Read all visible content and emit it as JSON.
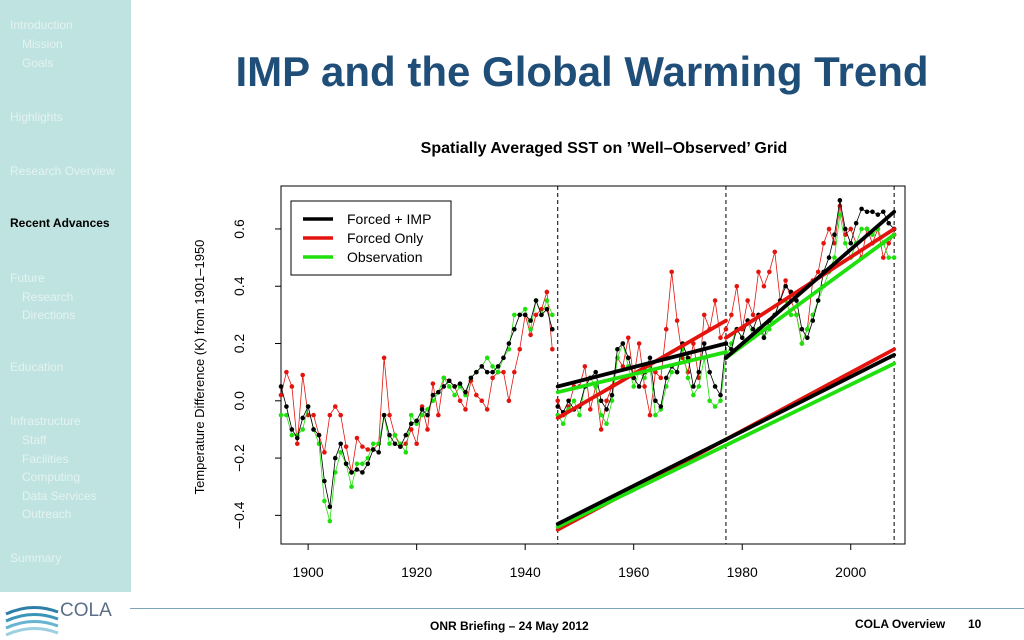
{
  "sidebar": {
    "items": [
      {
        "label": "Introduction",
        "level": 0
      },
      {
        "label": "Mission",
        "level": 1
      },
      {
        "label": "Goals",
        "level": 1
      },
      {
        "label": "Highlights",
        "level": 0
      },
      {
        "label": "Research Overview",
        "level": 0
      },
      {
        "label": "Recent Advances",
        "level": 0,
        "active": true
      },
      {
        "label": "Future",
        "level": 0
      },
      {
        "label": "Research",
        "level": 1
      },
      {
        "label": "Directions",
        "level": 1
      },
      {
        "label": "Education",
        "level": 0
      },
      {
        "label": "Infrastructure",
        "level": 0
      },
      {
        "label": "Staff",
        "level": 1
      },
      {
        "label": "Facilities",
        "level": 1
      },
      {
        "label": "Computing",
        "level": 1
      },
      {
        "label": "Data Services",
        "level": 1
      },
      {
        "label": "Outreach",
        "level": 1
      },
      {
        "label": "Summary",
        "level": 0
      }
    ]
  },
  "slide": {
    "title": "IMP and the Global Warming Trend"
  },
  "footer": {
    "center": "ONR Briefing – 24 May 2012",
    "right": "COLA Overview",
    "page": "10",
    "logo_text": "COLA"
  },
  "colors": {
    "title": "#1f4e79",
    "sidebar_bg": "#bfe3e0",
    "forced_imp": "#000000",
    "forced_only": "#e3140e",
    "observation": "#1fe00c"
  },
  "chart_data": {
    "type": "line",
    "title": "Spatially Averaged SST on ’Well–Observed’ Grid",
    "xlabel": "",
    "ylabel": "Temperature Difference (K) from 1901–1950",
    "xlim": [
      1895,
      2010
    ],
    "ylim": [
      -0.5,
      0.75
    ],
    "xticks": [
      1900,
      1920,
      1940,
      1960,
      1980,
      2000
    ],
    "yticks": [
      -0.4,
      -0.2,
      0.0,
      0.2,
      0.4,
      0.6
    ],
    "ytick_labels": [
      "−0.4",
      "−0.2",
      "0.0",
      "0.2",
      "0.4",
      "0.6"
    ],
    "legend_position": "top-left",
    "vlines": [
      1946,
      1977,
      2008
    ],
    "series": [
      {
        "name": "Forced + IMP",
        "color": "#000000",
        "x": [
          1895,
          1896,
          1897,
          1898,
          1899,
          1900,
          1901,
          1902,
          1903,
          1904,
          1905,
          1906,
          1907,
          1908,
          1909,
          1910,
          1911,
          1912,
          1913,
          1914,
          1915,
          1916,
          1917,
          1918,
          1919,
          1920,
          1921,
          1922,
          1923,
          1924,
          1925,
          1926,
          1927,
          1928,
          1929,
          1930,
          1931,
          1932,
          1933,
          1934,
          1935,
          1936,
          1937,
          1938,
          1939,
          1940,
          1941,
          1942,
          1943,
          1944,
          1945,
          1946,
          1947,
          1948,
          1949,
          1950,
          1951,
          1952,
          1953,
          1954,
          1955,
          1956,
          1957,
          1958,
          1959,
          1960,
          1961,
          1962,
          1963,
          1964,
          1965,
          1966,
          1967,
          1968,
          1969,
          1970,
          1971,
          1972,
          1973,
          1974,
          1975,
          1976,
          1977,
          1978,
          1979,
          1980,
          1981,
          1982,
          1983,
          1984,
          1985,
          1986,
          1987,
          1988,
          1989,
          1990,
          1991,
          1992,
          1993,
          1994,
          1995,
          1996,
          1997,
          1998,
          1999,
          2000,
          2001,
          2002,
          2003,
          2004,
          2005,
          2006,
          2007,
          2008
        ],
        "y": [
          0.05,
          -0.02,
          -0.1,
          -0.13,
          -0.06,
          -0.02,
          -0.1,
          -0.12,
          -0.28,
          -0.37,
          -0.2,
          -0.15,
          -0.22,
          -0.25,
          -0.24,
          -0.25,
          -0.22,
          -0.17,
          -0.18,
          -0.05,
          -0.12,
          -0.15,
          -0.16,
          -0.12,
          -0.08,
          -0.07,
          -0.03,
          -0.05,
          0.02,
          0.03,
          0.05,
          0.07,
          0.05,
          0.06,
          0.03,
          0.08,
          0.1,
          0.12,
          0.1,
          0.1,
          0.12,
          0.15,
          0.2,
          0.25,
          0.3,
          0.3,
          0.28,
          0.35,
          0.3,
          0.32,
          0.25,
          -0.02,
          -0.04,
          0.0,
          -0.03,
          -0.02,
          0.05,
          0.08,
          0.1,
          0.0,
          -0.03,
          0.02,
          0.18,
          0.2,
          0.15,
          0.08,
          0.05,
          0.1,
          0.15,
          0.0,
          -0.02,
          0.08,
          0.12,
          0.1,
          0.2,
          0.15,
          0.05,
          0.1,
          0.2,
          0.1,
          0.05,
          0.02,
          0.2,
          0.18,
          0.25,
          0.22,
          0.28,
          0.25,
          0.3,
          0.22,
          0.28,
          0.3,
          0.35,
          0.4,
          0.38,
          0.35,
          0.25,
          0.22,
          0.28,
          0.35,
          0.45,
          0.5,
          0.58,
          0.7,
          0.6,
          0.55,
          0.62,
          0.67,
          0.66,
          0.66,
          0.65,
          0.66,
          0.62,
          0.6
        ]
      },
      {
        "name": "Forced Only",
        "color": "#e3140e",
        "x": [
          1895,
          1896,
          1897,
          1898,
          1899,
          1900,
          1901,
          1902,
          1903,
          1904,
          1905,
          1906,
          1907,
          1908,
          1909,
          1910,
          1911,
          1912,
          1913,
          1914,
          1915,
          1916,
          1917,
          1918,
          1919,
          1920,
          1921,
          1922,
          1923,
          1924,
          1925,
          1926,
          1927,
          1928,
          1929,
          1930,
          1931,
          1932,
          1933,
          1934,
          1935,
          1936,
          1937,
          1938,
          1939,
          1940,
          1941,
          1942,
          1943,
          1944,
          1945,
          1946,
          1947,
          1948,
          1949,
          1950,
          1951,
          1952,
          1953,
          1954,
          1955,
          1956,
          1957,
          1958,
          1959,
          1960,
          1961,
          1962,
          1963,
          1964,
          1965,
          1966,
          1967,
          1968,
          1969,
          1970,
          1971,
          1972,
          1973,
          1974,
          1975,
          1976,
          1977,
          1978,
          1979,
          1980,
          1981,
          1982,
          1983,
          1984,
          1985,
          1986,
          1987,
          1988,
          1989,
          1990,
          1991,
          1992,
          1993,
          1994,
          1995,
          1996,
          1997,
          1998,
          1999,
          2000,
          2001,
          2002,
          2003,
          2004,
          2005,
          2006,
          2007,
          2008
        ],
        "y": [
          0.02,
          0.1,
          0.05,
          -0.15,
          0.09,
          -0.05,
          -0.05,
          -0.12,
          -0.18,
          -0.05,
          -0.02,
          -0.05,
          -0.16,
          -0.25,
          -0.13,
          -0.16,
          -0.17,
          -0.17,
          -0.15,
          0.15,
          -0.05,
          -0.12,
          -0.16,
          -0.15,
          -0.1,
          -0.15,
          -0.02,
          -0.1,
          0.06,
          -0.05,
          0.08,
          0.07,
          0.05,
          0.0,
          -0.03,
          0.07,
          0.02,
          0.0,
          -0.03,
          0.08,
          0.1,
          0.1,
          0.0,
          0.1,
          0.18,
          0.3,
          0.23,
          0.3,
          0.32,
          0.38,
          0.18,
          0.0,
          -0.05,
          -0.02,
          0.05,
          0.05,
          0.12,
          -0.03,
          0.05,
          -0.1,
          0.0,
          0.05,
          0.15,
          0.12,
          0.22,
          0.08,
          0.2,
          0.05,
          -0.05,
          0.1,
          0.08,
          0.25,
          0.45,
          0.28,
          0.15,
          0.1,
          0.2,
          0.08,
          0.3,
          0.25,
          0.35,
          0.22,
          0.25,
          0.3,
          0.4,
          0.25,
          0.35,
          0.3,
          0.45,
          0.4,
          0.45,
          0.52,
          0.35,
          0.42,
          0.35,
          0.3,
          0.2,
          0.25,
          0.42,
          0.45,
          0.55,
          0.6,
          0.55,
          0.68,
          0.58,
          0.6,
          0.55,
          0.5,
          0.6,
          0.55,
          0.6,
          0.5,
          0.55,
          0.58
        ]
      },
      {
        "name": "Observation",
        "color": "#1fe00c",
        "x": [
          1895,
          1896,
          1897,
          1898,
          1899,
          1900,
          1901,
          1902,
          1903,
          1904,
          1905,
          1906,
          1907,
          1908,
          1909,
          1910,
          1911,
          1912,
          1913,
          1914,
          1915,
          1916,
          1917,
          1918,
          1919,
          1920,
          1921,
          1922,
          1923,
          1924,
          1925,
          1926,
          1927,
          1928,
          1929,
          1930,
          1931,
          1932,
          1933,
          1934,
          1935,
          1936,
          1937,
          1938,
          1939,
          1940,
          1941,
          1942,
          1943,
          1944,
          1945,
          1946,
          1947,
          1948,
          1949,
          1950,
          1951,
          1952,
          1953,
          1954,
          1955,
          1956,
          1957,
          1958,
          1959,
          1960,
          1961,
          1962,
          1963,
          1964,
          1965,
          1966,
          1967,
          1968,
          1969,
          1970,
          1971,
          1972,
          1973,
          1974,
          1975,
          1976,
          1977,
          1978,
          1979,
          1980,
          1981,
          1982,
          1983,
          1984,
          1985,
          1986,
          1987,
          1988,
          1989,
          1990,
          1991,
          1992,
          1993,
          1994,
          1995,
          1996,
          1997,
          1998,
          1999,
          2000,
          2001,
          2002,
          2003,
          2004,
          2005,
          2006,
          2007,
          2008
        ],
        "y": [
          -0.05,
          -0.05,
          -0.12,
          -0.12,
          -0.1,
          -0.02,
          -0.1,
          -0.15,
          -0.35,
          -0.42,
          -0.25,
          -0.18,
          -0.22,
          -0.3,
          -0.22,
          -0.22,
          -0.2,
          -0.15,
          -0.15,
          -0.05,
          -0.15,
          -0.12,
          -0.15,
          -0.18,
          -0.05,
          -0.08,
          -0.05,
          -0.03,
          0.0,
          0.03,
          0.08,
          0.05,
          0.02,
          0.05,
          0.02,
          0.08,
          0.1,
          0.12,
          0.15,
          0.12,
          0.1,
          0.15,
          0.18,
          0.3,
          0.3,
          0.32,
          0.25,
          0.35,
          0.3,
          0.35,
          0.3,
          -0.05,
          -0.08,
          -0.03,
          0.0,
          -0.05,
          0.05,
          0.08,
          0.05,
          -0.05,
          -0.08,
          0.0,
          0.15,
          0.2,
          0.12,
          0.05,
          0.1,
          0.08,
          0.12,
          -0.05,
          -0.03,
          0.05,
          0.1,
          0.1,
          0.18,
          0.08,
          0.02,
          0.05,
          0.15,
          0.0,
          -0.02,
          0.0,
          0.15,
          0.2,
          0.25,
          0.22,
          0.28,
          0.22,
          0.25,
          0.22,
          0.25,
          0.3,
          0.35,
          0.35,
          0.3,
          0.3,
          0.2,
          0.25,
          0.3,
          0.35,
          0.4,
          0.45,
          0.5,
          0.65,
          0.55,
          0.5,
          0.55,
          0.6,
          0.6,
          0.58,
          0.6,
          0.55,
          0.5,
          0.5
        ]
      }
    ],
    "trend_lines": [
      {
        "series": "Forced + IMP",
        "color": "#000000",
        "segments": [
          [
            [
              1946,
              0.05
            ],
            [
              1977,
              0.2
            ]
          ],
          [
            [
              1977,
              0.15
            ],
            [
              2008,
              0.66
            ]
          ],
          [
            [
              1946,
              -0.43
            ],
            [
              2008,
              0.16
            ]
          ]
        ]
      },
      {
        "series": "Forced Only",
        "color": "#e3140e",
        "segments": [
          [
            [
              1946,
              -0.06
            ],
            [
              1977,
              0.28
            ]
          ],
          [
            [
              1977,
              0.22
            ],
            [
              2008,
              0.6
            ]
          ],
          [
            [
              1946,
              -0.45
            ],
            [
              2008,
              0.18
            ]
          ]
        ]
      },
      {
        "series": "Observation",
        "color": "#1fe00c",
        "segments": [
          [
            [
              1946,
              0.03
            ],
            [
              1977,
              0.17
            ]
          ],
          [
            [
              1977,
              0.15
            ],
            [
              2008,
              0.58
            ]
          ],
          [
            [
              1946,
              -0.44
            ],
            [
              2008,
              0.13
            ]
          ]
        ]
      }
    ]
  }
}
